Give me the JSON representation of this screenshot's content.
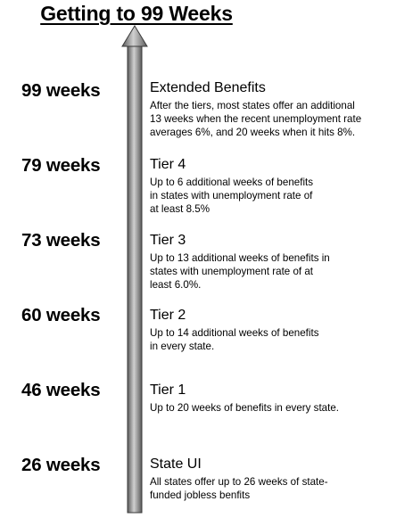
{
  "title": "Getting to 99 Weeks",
  "colors": {
    "arrow_dark": "#5a5a5a",
    "arrow_light": "#d0d0d0",
    "arrow_edge": "#3a3a3a"
  },
  "levels": [
    {
      "weeks": "99 weeks",
      "name": "Extended Benefits",
      "lines": [
        "After the tiers, most states offer an additional",
        "13 weeks when the recent unemployment rate",
        "averages 6%, and 20 weeks when it hits 8%."
      ]
    },
    {
      "weeks": "79 weeks",
      "name": "Tier 4",
      "lines": [
        "Up to 6 additional weeks of benefits",
        "in states with unemployment rate of",
        "at least 8.5%"
      ]
    },
    {
      "weeks": "73 weeks",
      "name": "Tier 3",
      "lines": [
        "Up to 13 additional weeks of benefits in",
        "states with unemployment rate of at",
        "least 6.0%."
      ]
    },
    {
      "weeks": "60 weeks",
      "name": "Tier 2",
      "lines": [
        "Up to 14 additional weeks of benefits",
        "in every state."
      ]
    },
    {
      "weeks": "46 weeks",
      "name": "Tier 1",
      "lines": [
        "Up to 20 weeks of benefits in every state."
      ]
    },
    {
      "weeks": "26 weeks",
      "name": "State UI",
      "lines": [
        "All states offer up to 26 weeks of state-",
        "funded jobless benfits"
      ]
    }
  ]
}
